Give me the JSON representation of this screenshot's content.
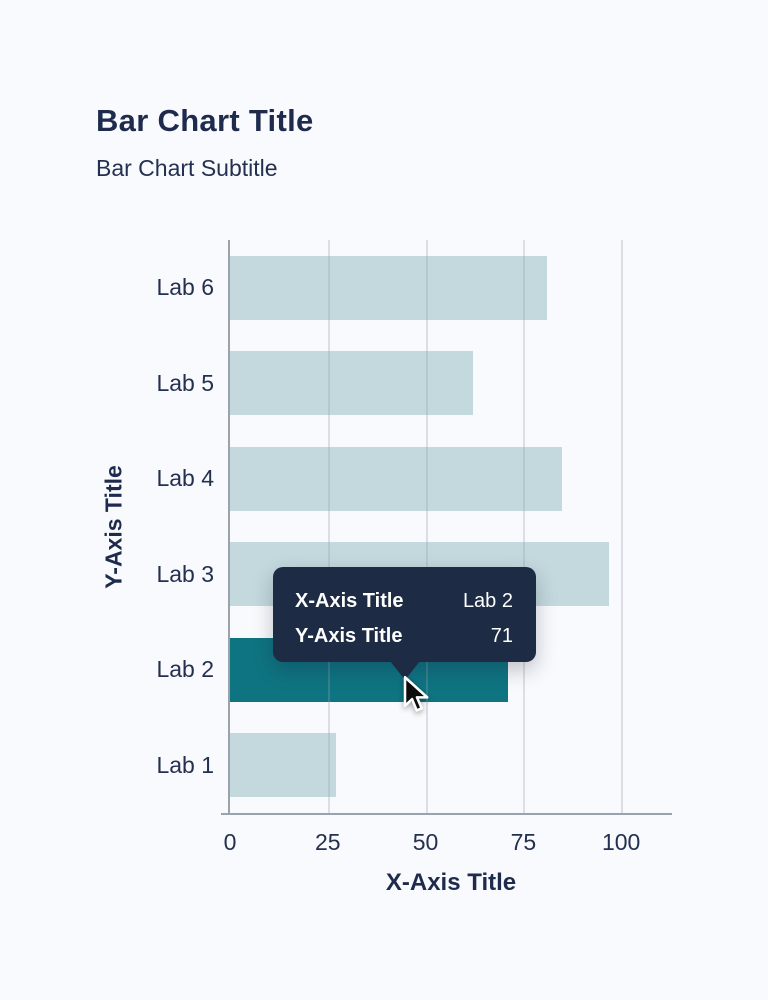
{
  "page": {
    "background": "#f9fafd"
  },
  "header": {
    "title": "Bar Chart Title",
    "subtitle": "Bar Chart Subtitle"
  },
  "chart_data": {
    "type": "bar",
    "orientation": "horizontal",
    "title": "Bar Chart Title",
    "subtitle": "Bar Chart Subtitle",
    "xlabel": "X-Axis Title",
    "ylabel": "Y-Axis Title",
    "categories": [
      "Lab 6",
      "Lab 5",
      "Lab 4",
      "Lab 3",
      "Lab 2",
      "Lab 1"
    ],
    "values": [
      81,
      62,
      85,
      97,
      71,
      27
    ],
    "highlighted_category": "Lab 2",
    "highlighted_value": 71,
    "xlim": [
      0,
      113
    ],
    "xticks": [
      0,
      25,
      50,
      75,
      100
    ],
    "grid": true,
    "legend": false,
    "colors": {
      "bar": "#c3d9de",
      "bar_highlight": "#0f7482",
      "axis_line": "#9aa2ab",
      "gridline": "#e9ecef",
      "text": "#24304f",
      "title_text": "#1e2b4d"
    }
  },
  "tooltip": {
    "background": "#1e2b44",
    "text_color": "#ffffff",
    "rows": [
      {
        "label": "X-Axis Title",
        "value": "Lab 2"
      },
      {
        "label": "Y-Axis Title",
        "value": "71"
      }
    ]
  },
  "cursor": {
    "icon": "arrow-pointer"
  }
}
